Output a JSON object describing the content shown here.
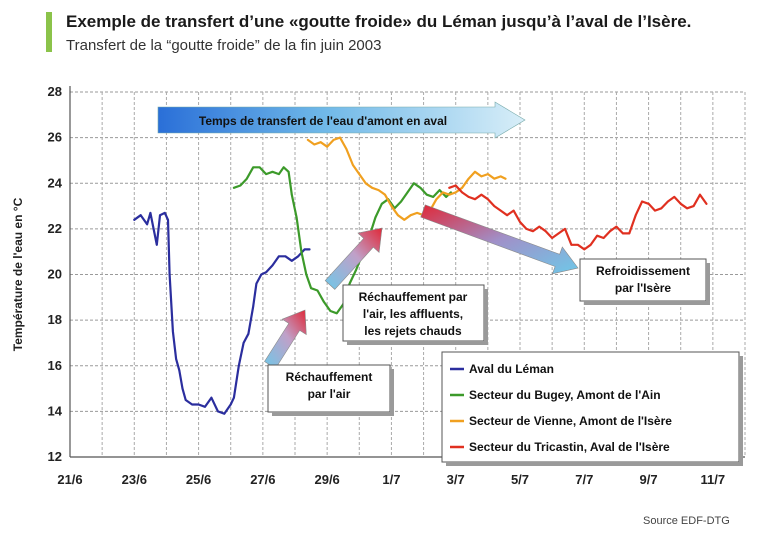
{
  "header": {
    "title": "Exemple de transfert d’une «goutte froide» du Léman jusqu’à l’aval de l’Isère.",
    "subtitle": "Transfert de la “goutte froide” de la fin juin 2003"
  },
  "source": "Source EDF-DTG",
  "colors": {
    "accent_bar": "#8bc34a"
  },
  "chart_data": {
    "type": "line",
    "ylabel": "Température de l'eau en °C",
    "xlabel": "",
    "ylim": [
      12,
      28
    ],
    "xlim": [
      21,
      42
    ],
    "grid": true,
    "legend_position": "bottom-right",
    "y_ticks": [
      "12",
      "14",
      "16",
      "18",
      "20",
      "22",
      "24",
      "26",
      "28"
    ],
    "x_ticks": [
      {
        "x": 21,
        "label": "21/6"
      },
      {
        "x": 23,
        "label": "23/6"
      },
      {
        "x": 25,
        "label": "25/6"
      },
      {
        "x": 27,
        "label": "27/6"
      },
      {
        "x": 29,
        "label": "29/6"
      },
      {
        "x": 31,
        "label": "1/7"
      },
      {
        "x": 33,
        "label": "3/7"
      },
      {
        "x": 35,
        "label": "5/7"
      },
      {
        "x": 37,
        "label": "7/7"
      },
      {
        "x": 39,
        "label": "9/7"
      },
      {
        "x": 41,
        "label": "11/7"
      }
    ],
    "series": [
      {
        "name": "Aval du Léman",
        "color": "#2b2e9e",
        "points": [
          [
            23.0,
            22.4
          ],
          [
            23.2,
            22.6
          ],
          [
            23.4,
            22.2
          ],
          [
            23.5,
            22.7
          ],
          [
            23.6,
            22.0
          ],
          [
            23.7,
            21.3
          ],
          [
            23.8,
            22.6
          ],
          [
            23.95,
            22.7
          ],
          [
            24.05,
            22.4
          ],
          [
            24.1,
            20.0
          ],
          [
            24.2,
            17.5
          ],
          [
            24.3,
            16.3
          ],
          [
            24.4,
            15.8
          ],
          [
            24.5,
            15.0
          ],
          [
            24.6,
            14.5
          ],
          [
            24.8,
            14.3
          ],
          [
            25.0,
            14.3
          ],
          [
            25.2,
            14.2
          ],
          [
            25.4,
            14.6
          ],
          [
            25.6,
            14.0
          ],
          [
            25.8,
            13.9
          ],
          [
            26.0,
            14.3
          ],
          [
            26.1,
            14.6
          ],
          [
            26.25,
            16.0
          ],
          [
            26.4,
            17.0
          ],
          [
            26.55,
            17.4
          ],
          [
            26.7,
            18.6
          ],
          [
            26.8,
            19.6
          ],
          [
            26.95,
            20.0
          ],
          [
            27.1,
            20.1
          ],
          [
            27.3,
            20.4
          ],
          [
            27.5,
            20.8
          ],
          [
            27.7,
            20.8
          ],
          [
            27.9,
            20.6
          ],
          [
            28.1,
            20.8
          ],
          [
            28.3,
            21.1
          ],
          [
            28.45,
            21.1
          ]
        ]
      },
      {
        "name": "Secteur du Bugey, Amont de l'Ain",
        "color": "#3c9a2a",
        "points": [
          [
            26.1,
            23.8
          ],
          [
            26.3,
            23.9
          ],
          [
            26.5,
            24.2
          ],
          [
            26.7,
            24.7
          ],
          [
            26.9,
            24.7
          ],
          [
            27.1,
            24.4
          ],
          [
            27.3,
            24.5
          ],
          [
            27.5,
            24.4
          ],
          [
            27.65,
            24.7
          ],
          [
            27.8,
            24.5
          ],
          [
            27.9,
            23.5
          ],
          [
            28.05,
            22.5
          ],
          [
            28.2,
            21.0
          ],
          [
            28.35,
            20.0
          ],
          [
            28.5,
            19.4
          ],
          [
            28.7,
            19.3
          ],
          [
            28.9,
            18.8
          ],
          [
            29.1,
            18.4
          ],
          [
            29.3,
            18.3
          ],
          [
            29.5,
            18.7
          ],
          [
            29.7,
            19.6
          ],
          [
            29.9,
            20.2
          ],
          [
            30.1,
            20.9
          ],
          [
            30.3,
            21.6
          ],
          [
            30.5,
            22.5
          ],
          [
            30.7,
            23.1
          ],
          [
            30.9,
            23.3
          ],
          [
            31.1,
            22.9
          ],
          [
            31.3,
            23.2
          ],
          [
            31.5,
            23.6
          ],
          [
            31.7,
            24.0
          ],
          [
            31.9,
            23.8
          ],
          [
            32.1,
            23.5
          ],
          [
            32.3,
            23.4
          ],
          [
            32.5,
            23.7
          ],
          [
            32.7,
            23.4
          ],
          [
            32.85,
            23.6
          ]
        ]
      },
      {
        "name": "Secteur de Vienne, Amont de l'Isère",
        "color": "#f0a020",
        "points": [
          [
            28.4,
            25.9
          ],
          [
            28.6,
            25.7
          ],
          [
            28.8,
            25.8
          ],
          [
            29.0,
            25.6
          ],
          [
            29.2,
            25.9
          ],
          [
            29.4,
            26.0
          ],
          [
            29.6,
            25.5
          ],
          [
            29.8,
            24.8
          ],
          [
            30.0,
            24.4
          ],
          [
            30.2,
            24.0
          ],
          [
            30.4,
            23.8
          ],
          [
            30.6,
            23.7
          ],
          [
            30.8,
            23.5
          ],
          [
            31.0,
            23.0
          ],
          [
            31.2,
            22.6
          ],
          [
            31.4,
            22.4
          ],
          [
            31.6,
            22.6
          ],
          [
            31.8,
            22.7
          ],
          [
            32.0,
            22.6
          ],
          [
            32.2,
            22.8
          ],
          [
            32.4,
            23.3
          ],
          [
            32.6,
            23.6
          ],
          [
            32.8,
            23.5
          ],
          [
            33.0,
            23.6
          ],
          [
            33.2,
            23.8
          ],
          [
            33.4,
            24.2
          ],
          [
            33.6,
            24.5
          ],
          [
            33.8,
            24.3
          ],
          [
            34.0,
            24.4
          ],
          [
            34.2,
            24.2
          ],
          [
            34.4,
            24.3
          ],
          [
            34.55,
            24.2
          ]
        ]
      },
      {
        "name": "Secteur du Tricastin, Aval de l'Isère",
        "color": "#e03020",
        "points": [
          [
            32.8,
            23.8
          ],
          [
            33.0,
            23.9
          ],
          [
            33.2,
            23.6
          ],
          [
            33.4,
            23.4
          ],
          [
            33.6,
            23.3
          ],
          [
            33.8,
            23.5
          ],
          [
            34.0,
            23.3
          ],
          [
            34.2,
            23.0
          ],
          [
            34.4,
            22.8
          ],
          [
            34.6,
            22.6
          ],
          [
            34.8,
            22.8
          ],
          [
            35.0,
            22.3
          ],
          [
            35.2,
            22.0
          ],
          [
            35.4,
            21.9
          ],
          [
            35.6,
            22.1
          ],
          [
            35.8,
            21.9
          ],
          [
            36.0,
            21.6
          ],
          [
            36.2,
            21.8
          ],
          [
            36.4,
            22.0
          ],
          [
            36.6,
            21.3
          ],
          [
            36.8,
            21.3
          ],
          [
            37.0,
            21.1
          ],
          [
            37.2,
            21.3
          ],
          [
            37.4,
            21.7
          ],
          [
            37.6,
            21.6
          ],
          [
            37.8,
            21.9
          ],
          [
            38.0,
            22.1
          ],
          [
            38.2,
            21.8
          ],
          [
            38.4,
            21.8
          ],
          [
            38.6,
            22.6
          ],
          [
            38.8,
            23.2
          ],
          [
            39.0,
            23.1
          ],
          [
            39.2,
            22.8
          ],
          [
            39.4,
            22.9
          ],
          [
            39.6,
            23.2
          ],
          [
            39.8,
            23.4
          ],
          [
            40.0,
            23.1
          ],
          [
            40.2,
            22.9
          ],
          [
            40.4,
            23.0
          ],
          [
            40.6,
            23.5
          ],
          [
            40.8,
            23.1
          ]
        ]
      }
    ],
    "annotations": [
      {
        "id": "transfer",
        "lines": [
          "Temps de transfert de l'eau d'amont en aval"
        ]
      },
      {
        "id": "rechauffement-air",
        "lines": [
          "Réchauffement",
          "par l'air"
        ]
      },
      {
        "id": "rechauffement-multi",
        "lines": [
          "Réchauffement par",
          "l'air, les affluents,",
          "les rejets chauds"
        ]
      },
      {
        "id": "refroidissement",
        "lines": [
          "Refroidissement",
          "par l'Isère"
        ]
      }
    ]
  }
}
